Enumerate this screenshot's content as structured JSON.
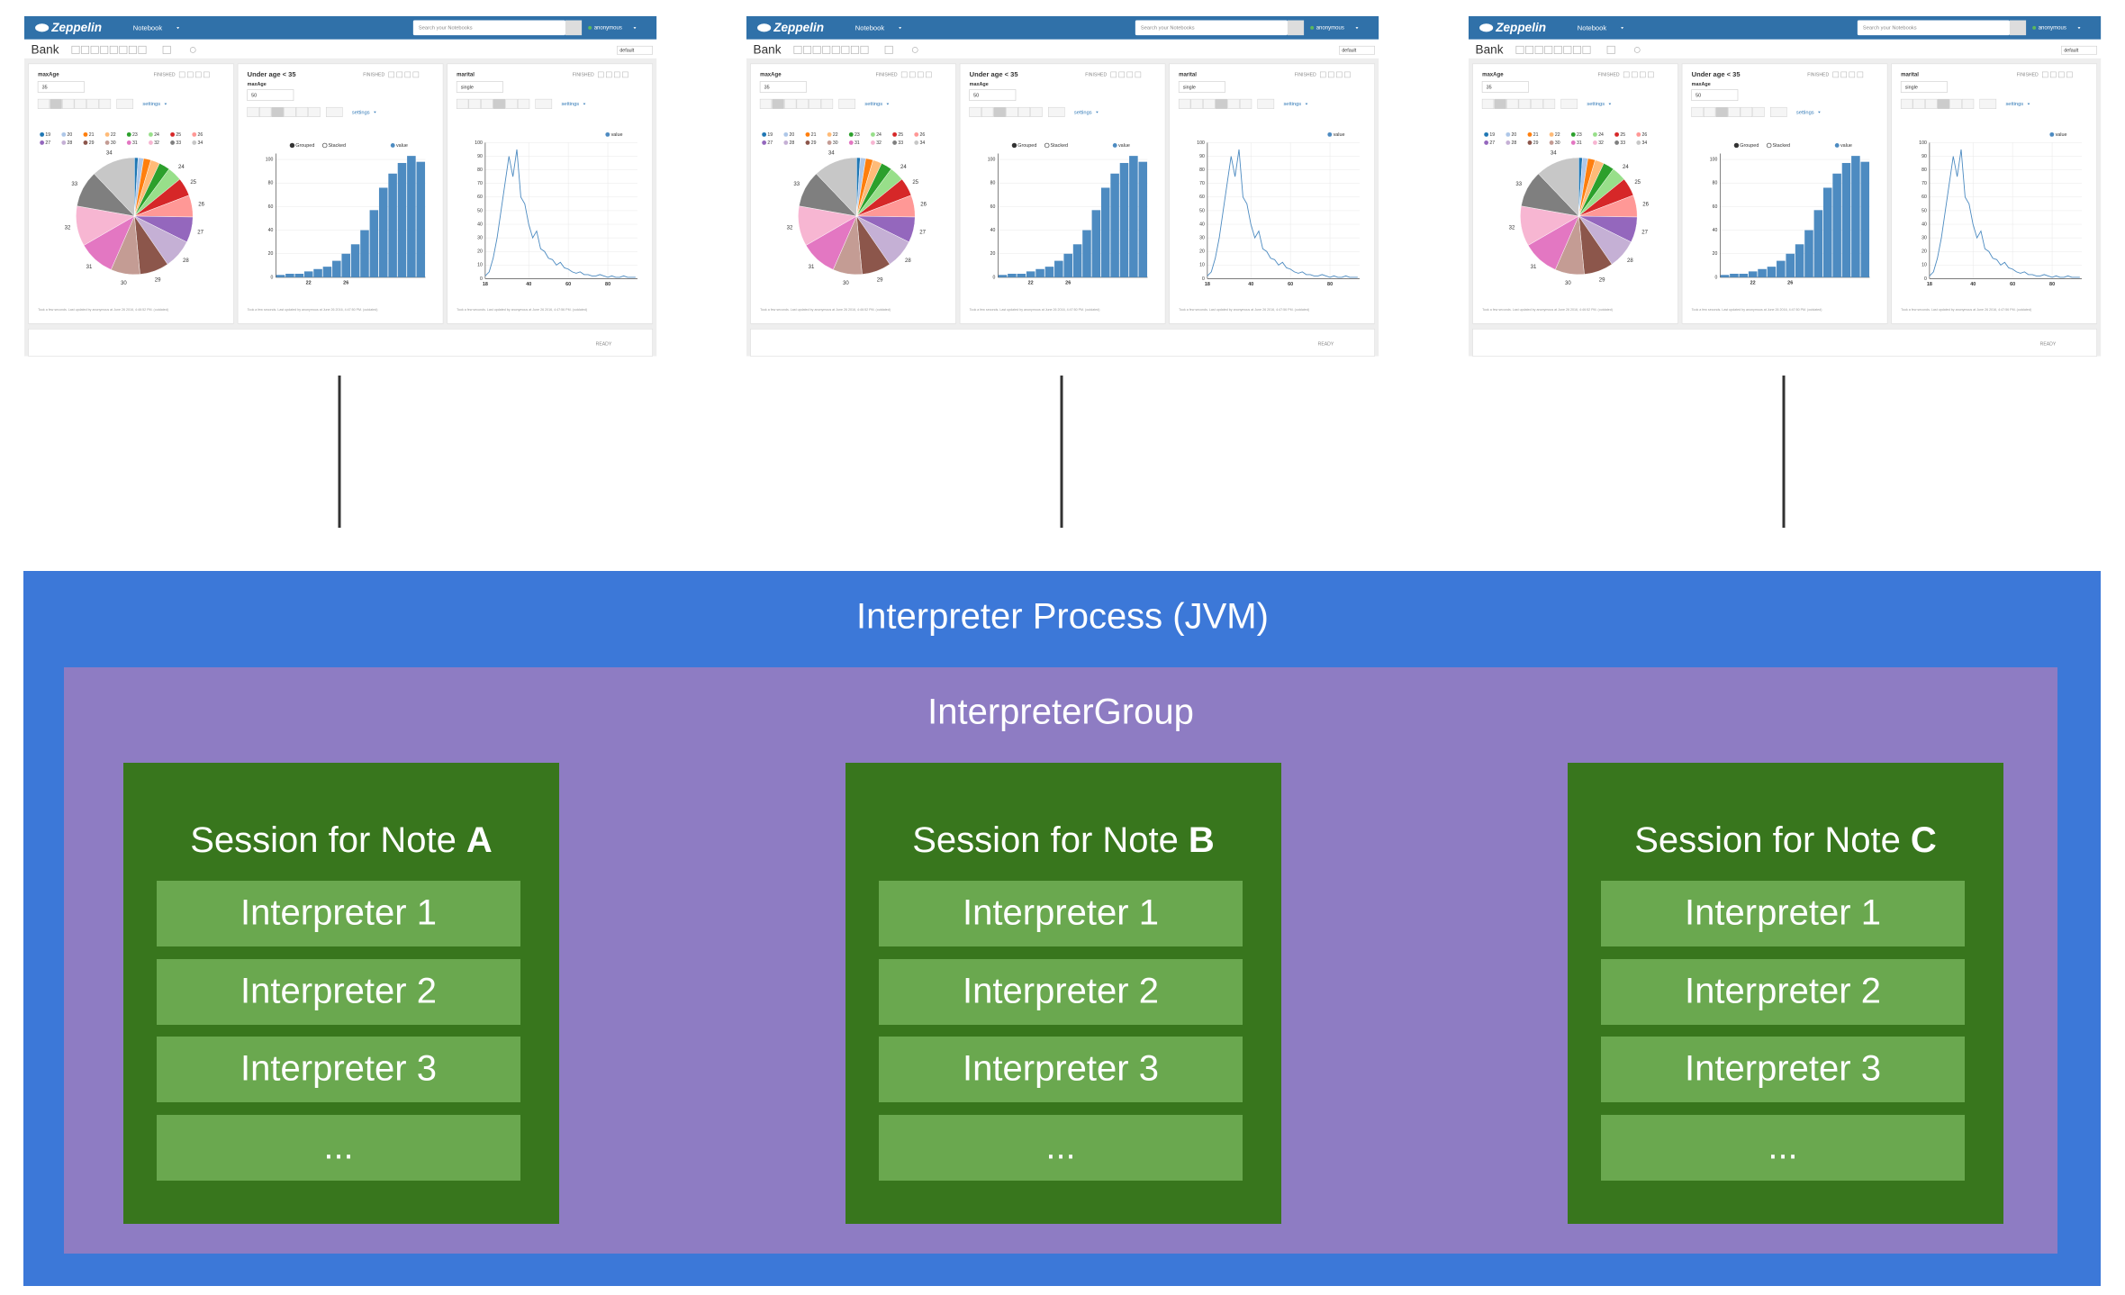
{
  "screenshot": {
    "brand": "Zeppelin",
    "menu": "Notebook",
    "search": "Search your Notebooks",
    "user": "anonymous",
    "note": "Bank",
    "mode": "default",
    "status_ready": "READY",
    "paragraphs": [
      {
        "title": "maxAge",
        "input": "35",
        "status": "FINISHED",
        "settings": "settings",
        "footer": "Took a few seconds. Last updated by anonymous at June 26 2016, 4:46:52 PM. (outdated)",
        "chart": {
          "type": "pie",
          "categories": [
            "19",
            "20",
            "21",
            "22",
            "23",
            "24",
            "25",
            "26",
            "27",
            "28",
            "29",
            "30",
            "31",
            "32",
            "33",
            "34"
          ],
          "values": [
            1,
            1.5,
            2,
            2.5,
            3,
            4,
            5,
            6,
            7,
            8,
            8,
            8,
            10,
            11,
            10,
            12
          ],
          "colors": [
            "#1f77b4",
            "#aec7e8",
            "#ff7f0e",
            "#ffbb78",
            "#2ca02c",
            "#98df8a",
            "#d62728",
            "#ff9896",
            "#9467bd",
            "#c5b0d5",
            "#8c564b",
            "#c49c94",
            "#e377c2",
            "#f7b6d2",
            "#7f7f7f",
            "#c7c7c7"
          ]
        }
      },
      {
        "title": "Under age < 35",
        "param": "maxAge",
        "input": "50",
        "status": "FINISHED",
        "settings": "settings",
        "footer": "Took a few seconds. Last updated by anonymous at June 26 2016, 4:47:50 PM. (outdated)",
        "chart": {
          "type": "bar",
          "legend_options": [
            "Grouped",
            "Stacked"
          ],
          "series_name": "value",
          "color": "#4d8bc1",
          "x": [
            19,
            20,
            21,
            22,
            23,
            24,
            25,
            26,
            27,
            28,
            29,
            30,
            31,
            32,
            33,
            34
          ],
          "values": [
            2,
            3,
            3,
            5,
            7,
            9,
            14,
            20,
            28,
            40,
            57,
            76,
            88,
            97,
            103,
            98
          ],
          "xlim": [
            18.5,
            34.5
          ],
          "xticks": [
            22,
            26
          ],
          "ylim": [
            0,
            105
          ],
          "yticks": [
            0,
            20,
            40,
            60,
            80,
            100
          ]
        }
      },
      {
        "title": "marital",
        "input": "single",
        "status": "FINISHED",
        "settings": "settings",
        "footer": "Took a few seconds. Last updated by anonymous at June 26 2016, 4:47:56 PM. (outdated)",
        "chart": {
          "type": "line",
          "series_name": "value",
          "color": "#4d8bc1",
          "x": [
            18,
            20,
            22,
            24,
            26,
            28,
            30,
            32,
            34,
            36,
            38,
            40,
            42,
            44,
            46,
            48,
            50,
            52,
            54,
            56,
            58,
            60,
            62,
            64,
            66,
            68,
            70,
            72,
            74,
            76,
            78,
            80,
            82,
            84,
            86,
            88,
            90,
            92,
            94
          ],
          "values": [
            2,
            5,
            15,
            30,
            50,
            70,
            90,
            75,
            95,
            60,
            55,
            40,
            30,
            35,
            22,
            20,
            15,
            14,
            10,
            12,
            8,
            7,
            5,
            4,
            5,
            3,
            3,
            2,
            2,
            3,
            2,
            1,
            2,
            1,
            1,
            2,
            1,
            1,
            1
          ],
          "xlim": [
            18,
            95
          ],
          "xticks": [
            18,
            40,
            60,
            80
          ],
          "ylim": [
            0,
            100
          ],
          "yticks": [
            0,
            10,
            20,
            30,
            40,
            50,
            60,
            70,
            80,
            90,
            100
          ]
        }
      }
    ]
  },
  "diagram": {
    "process": "Interpreter Process (JVM)",
    "group": "InterpreterGroup",
    "sessions": [
      {
        "label": "Session for Note",
        "note": "A",
        "interpreters": [
          "Interpreter 1",
          "Interpreter 2",
          "Interpreter 3",
          "..."
        ]
      },
      {
        "label": "Session for Note",
        "note": "B",
        "interpreters": [
          "Interpreter 1",
          "Interpreter 2",
          "Interpreter 3",
          "..."
        ]
      },
      {
        "label": "Session for Note",
        "note": "C",
        "interpreters": [
          "Interpreter 1",
          "Interpreter 2",
          "Interpreter 3",
          "..."
        ]
      }
    ]
  }
}
